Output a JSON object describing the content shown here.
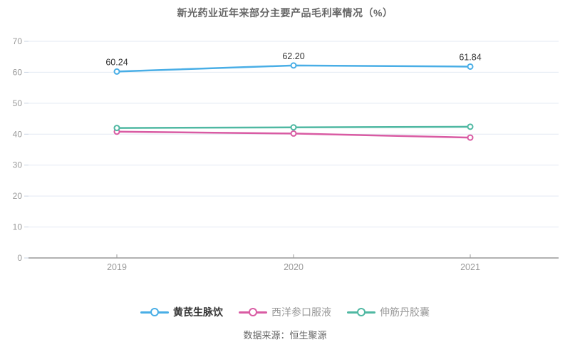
{
  "title": "新光药业近年来部分主要产品毛利率情况（%）",
  "footer": "数据来源：恒生聚源",
  "colors": {
    "grid": "#E3E9F3",
    "axis_line": "#666666",
    "axis_label": "#999999",
    "tick": "#C9D3E2",
    "data_label": "#333333"
  },
  "chart_data": {
    "type": "line",
    "categories": [
      "2019",
      "2020",
      "2021"
    ],
    "series": [
      {
        "name": "黄芪生脉饮",
        "values": [
          60.24,
          62.2,
          61.84
        ],
        "value_labels": [
          "60.24",
          "62.20",
          "61.84"
        ],
        "show_labels": true,
        "color": "#49AEE6",
        "legend_emphasis": true
      },
      {
        "name": "西洋参口服液",
        "values": [
          40.8,
          40.2,
          38.9
        ],
        "value_labels": [],
        "show_labels": false,
        "color": "#D95BA3",
        "legend_emphasis": false
      },
      {
        "name": "伸筋丹胶囊",
        "values": [
          42.0,
          42.2,
          42.4
        ],
        "value_labels": [],
        "show_labels": false,
        "color": "#4FB8A2",
        "legend_emphasis": false
      }
    ],
    "ylim": [
      0,
      70
    ],
    "y_ticks": [
      0,
      10,
      20,
      30,
      40,
      50,
      60,
      70
    ],
    "grid": true,
    "legend_position": "bottom",
    "marker": "ring",
    "title": "新光药业近年来部分主要产品毛利率情况（%）",
    "xlabel": "",
    "ylabel": ""
  }
}
